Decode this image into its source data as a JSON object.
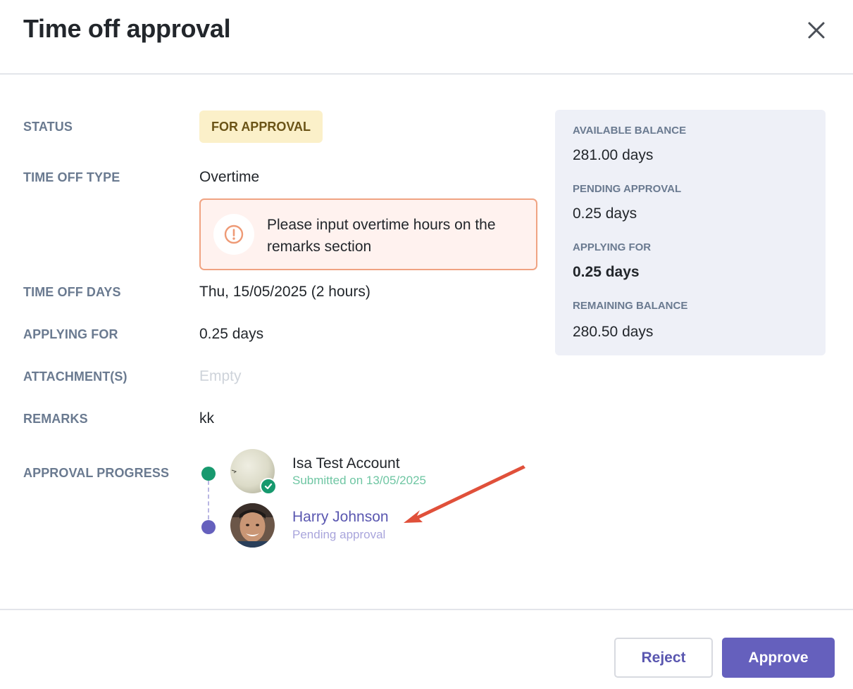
{
  "dialog": {
    "title": "Time off approval",
    "close_icon": "close-icon"
  },
  "fields": {
    "status_label": "STATUS",
    "status_value": "FOR APPROVAL",
    "type_label": "TIME OFF TYPE",
    "type_value": "Overtime",
    "warning_text": "Please input overtime hours on the remarks section",
    "days_label": "TIME OFF DAYS",
    "days_value": "Thu, 15/05/2025 (2 hours)",
    "applying_label": "APPLYING FOR",
    "applying_value": "0.25 days",
    "attachments_label": "ATTACHMENT(S)",
    "attachments_value": "Empty",
    "remarks_label": "REMARKS",
    "remarks_value": "kk",
    "progress_label": "APPROVAL PROGRESS"
  },
  "balance": {
    "available_label": "AVAILABLE BALANCE",
    "available_value": "281.00 days",
    "pending_label": "PENDING APPROVAL",
    "pending_value": "0.25 days",
    "applying_label": "APPLYING FOR",
    "applying_value": "0.25 days",
    "remaining_label": "REMAINING BALANCE",
    "remaining_value": "280.50 days"
  },
  "approvers": [
    {
      "name": "Isa Test Account",
      "status": "Submitted on 13/05/2025"
    },
    {
      "name": "Harry Johnson",
      "status": "Pending approval"
    }
  ],
  "actions": {
    "reject_label": "Reject",
    "approve_label": "Approve"
  },
  "colors": {
    "accent": "#6560bd",
    "success": "#17996e",
    "status_badge_bg": "#fbf0c9",
    "warning_border": "#f0a382",
    "annotation_arrow": "#e0503a"
  }
}
